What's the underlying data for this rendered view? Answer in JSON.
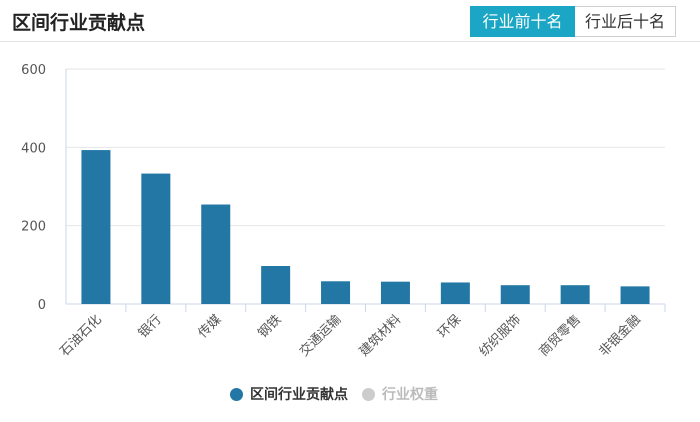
{
  "header": {
    "title": "区间行业贡献点",
    "tabs": [
      {
        "label": "行业前十名",
        "active": true
      },
      {
        "label": "行业后十名",
        "active": false
      }
    ]
  },
  "colors": {
    "bar": "#2277a5",
    "tab_active": "#1aa6c4",
    "legend_inactive": "#cccccc"
  },
  "legend": {
    "items": [
      {
        "label": "区间行业贡献点",
        "color": "#2277a5",
        "active": true
      },
      {
        "label": "行业权重",
        "color": "#cccccc",
        "active": false
      }
    ]
  },
  "chart_data": {
    "type": "bar",
    "categories": [
      "石油石化",
      "银行",
      "传媒",
      "钢铁",
      "交通运输",
      "建筑材料",
      "环保",
      "纺织服饰",
      "商贸零售",
      "非银金融"
    ],
    "series": [
      {
        "name": "区间行业贡献点",
        "values": [
          393,
          333,
          254,
          97,
          58,
          57,
          55,
          48,
          48,
          45
        ]
      }
    ],
    "yticks": [
      0,
      200,
      400,
      600
    ],
    "ylim": [
      0,
      600
    ],
    "grid": true
  }
}
